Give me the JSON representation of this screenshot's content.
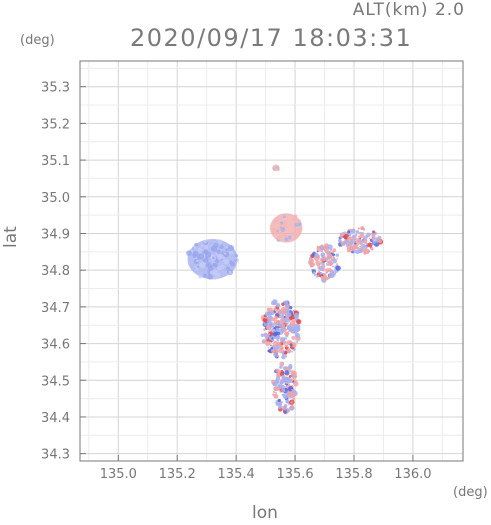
{
  "header": {
    "altitude_label": "ALT(km) 2.0",
    "timestamp": "2020/09/17 18:03:31"
  },
  "axes": {
    "y_unit": "(deg)",
    "x_unit": "(deg)",
    "xlabel": "lon",
    "ylabel": "lat"
  },
  "colors": {
    "approaching": "#a8b4f0",
    "receding": "#f0a8a8",
    "grid": "#d4d4d4",
    "axis": "#777777"
  },
  "chart_data": {
    "type": "heatmap",
    "title": "2020/09/17 18:03:31",
    "subtitle": "ALT(km) 2.0",
    "xlabel": "lon",
    "ylabel": "lat",
    "x_unit": "(deg)",
    "y_unit": "(deg)",
    "xlim": [
      134.87,
      136.17
    ],
    "ylim": [
      34.28,
      35.37
    ],
    "grid": true,
    "xticks": [
      135.0,
      135.2,
      135.4,
      135.6,
      135.8,
      136.0
    ],
    "xtick_labels": [
      "135.0",
      "135.2",
      "135.4",
      "135.6",
      "135.8",
      "136.0"
    ],
    "yticks": [
      34.3,
      34.4,
      34.5,
      34.6,
      34.7,
      34.8,
      34.9,
      35.0,
      35.1,
      35.2,
      35.3
    ],
    "ytick_labels": [
      "34.3",
      "34.4",
      "34.5",
      "34.6",
      "34.7",
      "34.8",
      "34.9",
      "35.0",
      "35.1",
      "35.2",
      "35.3"
    ],
    "regions": [
      {
        "name": "smooth-blue-patch",
        "color": "approaching",
        "lon": 135.32,
        "lat": 34.83,
        "rx": 0.085,
        "ry": 0.055
      },
      {
        "name": "pink-patch-north",
        "color": "receding",
        "lon": 135.57,
        "lat": 34.915,
        "rx": 0.055,
        "ry": 0.04
      },
      {
        "name": "east-band-west",
        "color": "mixed",
        "lon": 135.7,
        "lat": 34.82,
        "rx": 0.05,
        "ry": 0.05
      },
      {
        "name": "east-band-east",
        "color": "mixed",
        "lon": 135.82,
        "lat": 34.88,
        "rx": 0.07,
        "ry": 0.035
      },
      {
        "name": "central-cluster",
        "color": "mixed",
        "lon": 135.55,
        "lat": 34.64,
        "rx": 0.065,
        "ry": 0.08
      },
      {
        "name": "southern-tail",
        "color": "mixed",
        "lon": 135.565,
        "lat": 34.48,
        "rx": 0.04,
        "ry": 0.07
      },
      {
        "name": "north-speck",
        "color": "receding",
        "lon": 135.535,
        "lat": 35.08,
        "rx": 0.012,
        "ry": 0.008
      }
    ]
  }
}
